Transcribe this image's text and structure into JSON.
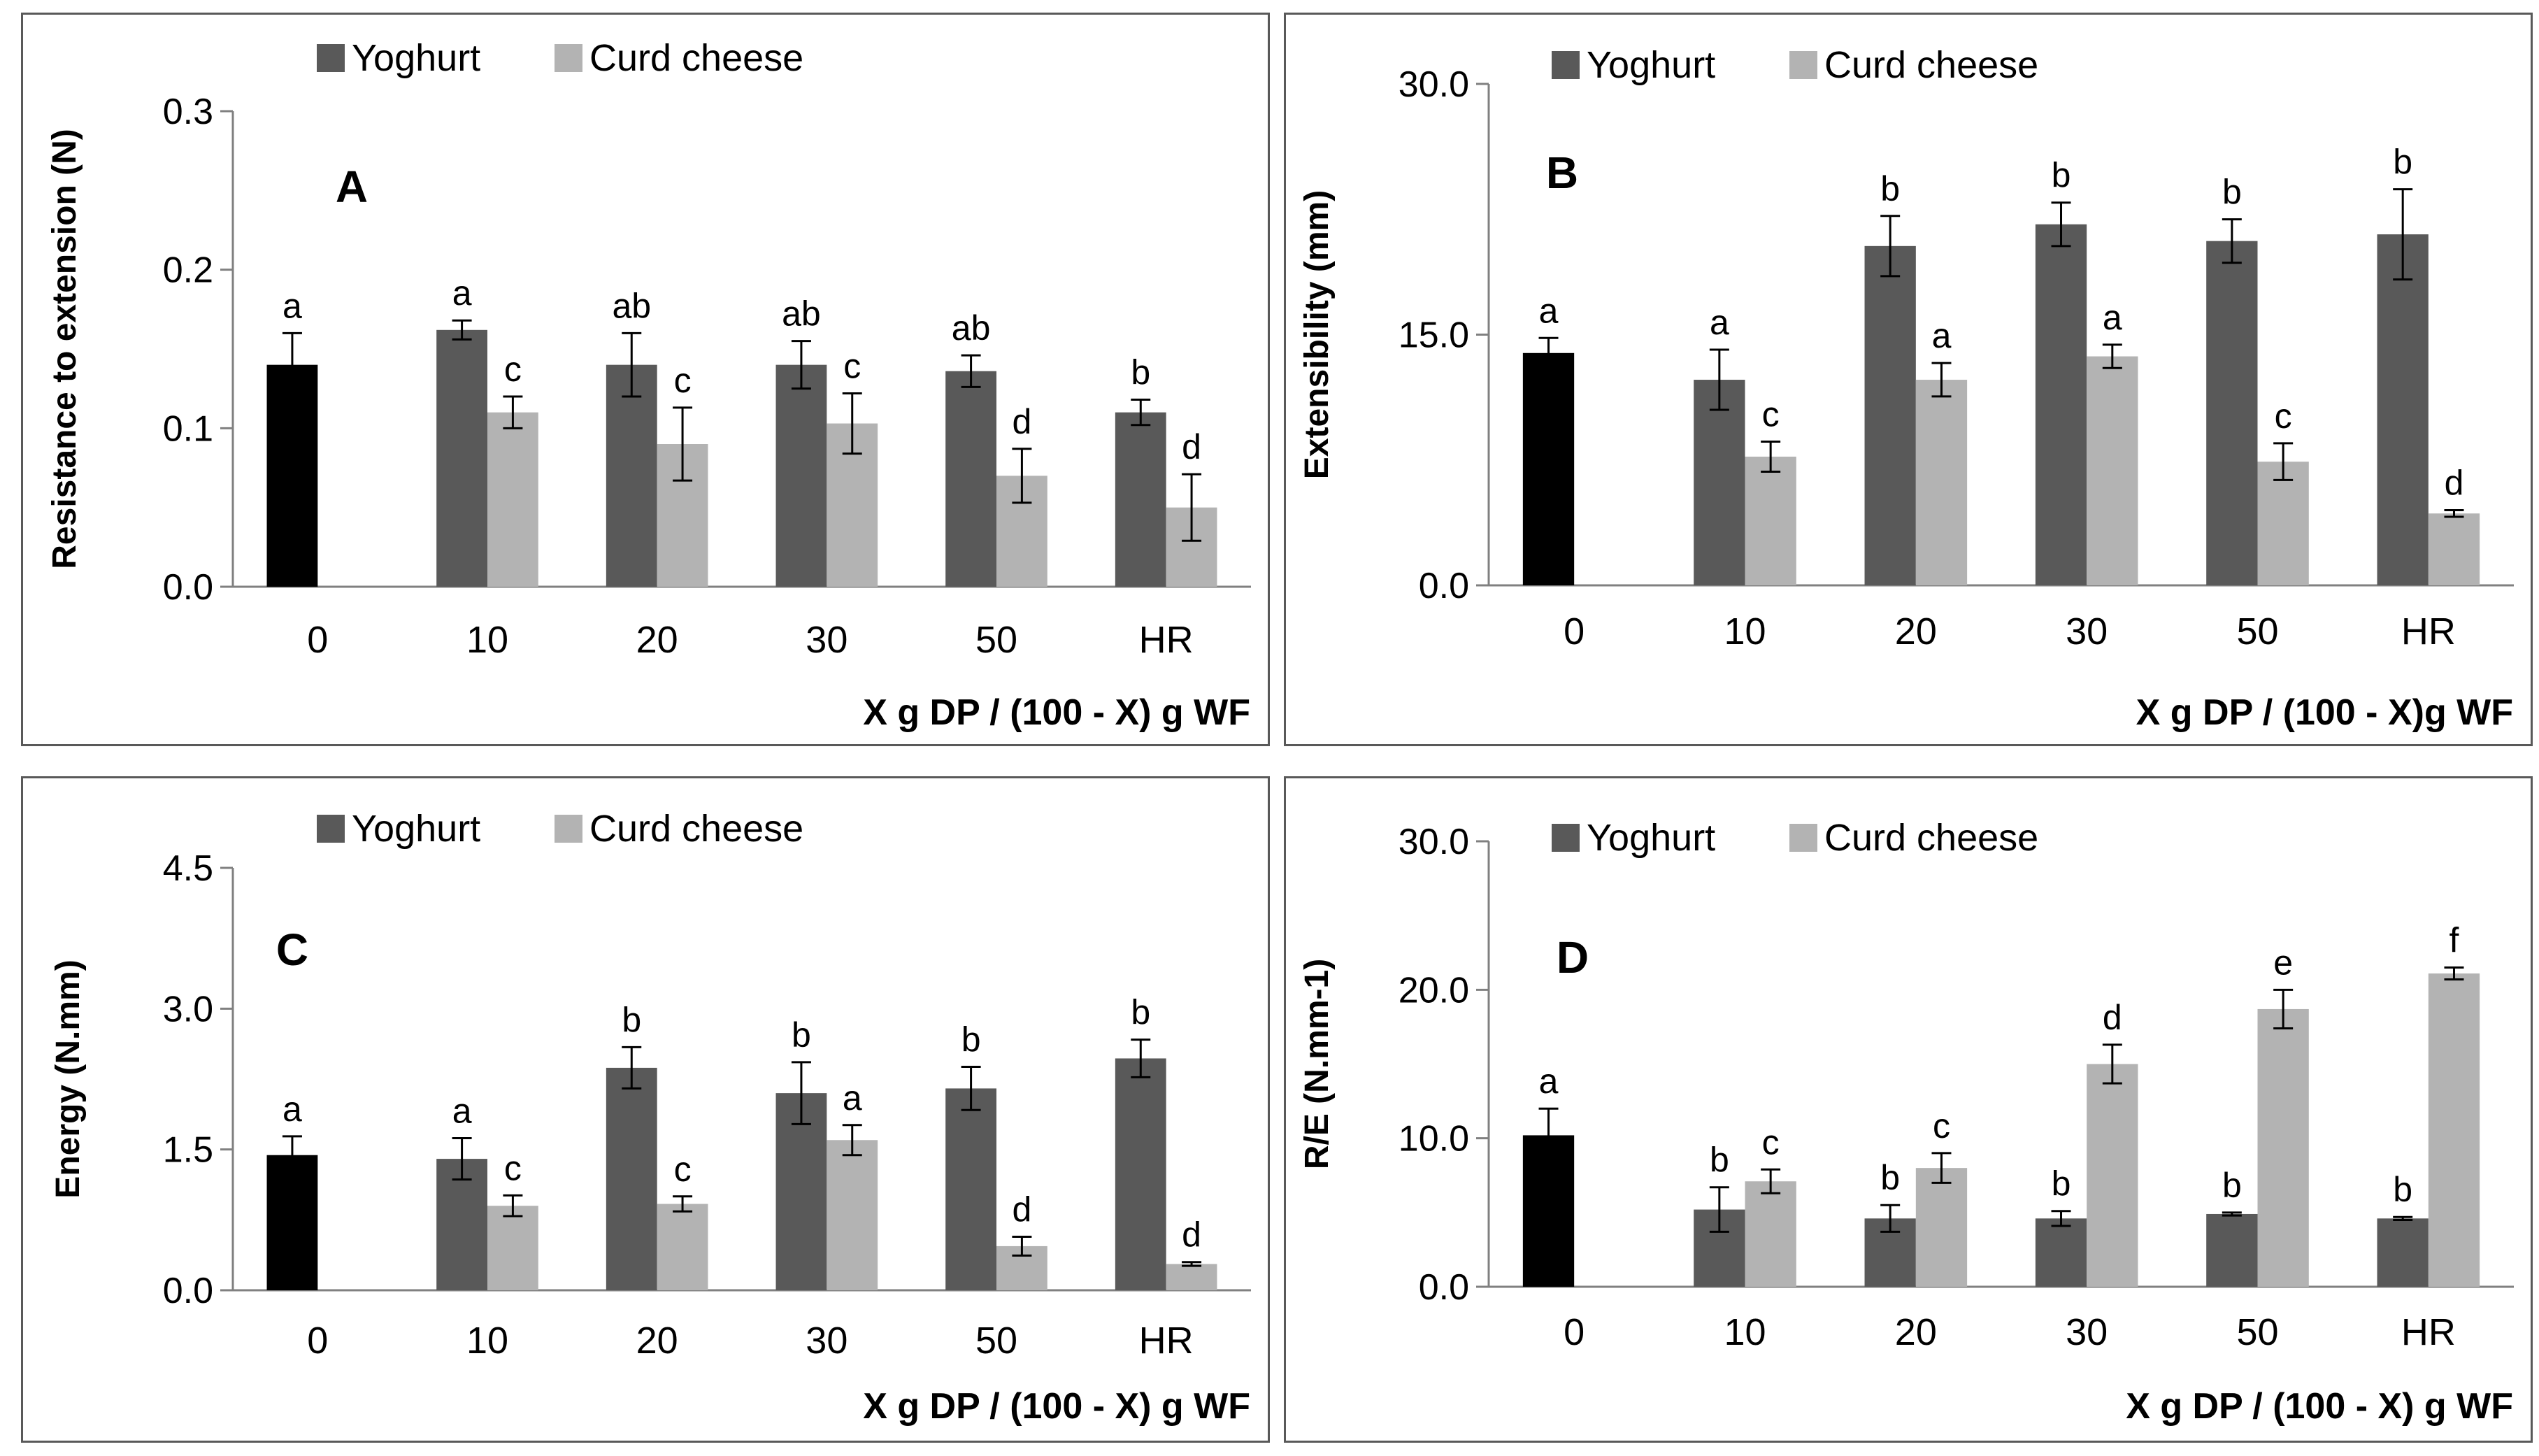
{
  "colors": {
    "control": "#000000",
    "yoghurt": "#595959",
    "curd": "#b3b3b3",
    "axis": "#808080",
    "border": "#595959"
  },
  "chart_data": [
    {
      "type": "bar",
      "panel_label": "A",
      "ylabel": "Resistance to extension (N)",
      "xlabel": "X g DP / (100 - X) g WF",
      "yticks": [
        "0.0",
        "0.1",
        "0.2",
        "0.3"
      ],
      "ylim": [
        0,
        0.3
      ],
      "categories": [
        "0",
        "10",
        "20",
        "30",
        "50",
        "HR"
      ],
      "control": {
        "value": 0.14,
        "error": 0.02,
        "letter": "a"
      },
      "series": [
        {
          "name": "Yoghurt",
          "values": [
            null,
            0.162,
            0.14,
            0.14,
            0.136,
            0.11
          ],
          "errors": [
            null,
            0.006,
            0.02,
            0.015,
            0.01,
            0.008
          ],
          "letters": [
            "",
            "a",
            "ab",
            "ab",
            "ab",
            "b"
          ]
        },
        {
          "name": "Curd cheese",
          "values": [
            null,
            0.11,
            0.09,
            0.103,
            0.07,
            0.05
          ],
          "errors": [
            null,
            0.01,
            0.023,
            0.019,
            0.017,
            0.021
          ],
          "letters": [
            "",
            "c",
            "c",
            "c",
            "d",
            "d"
          ]
        }
      ]
    },
    {
      "type": "bar",
      "panel_label": "B",
      "ylabel": "Extensibility (mm)",
      "xlabel": "X g DP / (100 - X)g WF",
      "yticks": [
        "0.0",
        "15.0",
        "30.0"
      ],
      "ylim": [
        0,
        30
      ],
      "categories": [
        "0",
        "10",
        "20",
        "30",
        "50",
        "HR"
      ],
      "control": {
        "value": 13.9,
        "error": 0.9,
        "letter": "a"
      },
      "series": [
        {
          "name": "Yoghurt",
          "values": [
            null,
            12.3,
            20.3,
            21.6,
            20.6,
            21.0
          ],
          "errors": [
            null,
            1.8,
            1.8,
            1.3,
            1.3,
            2.7
          ],
          "letters": [
            "",
            "a",
            "b",
            "b",
            "b",
            "b"
          ]
        },
        {
          "name": "Curd cheese",
          "values": [
            null,
            7.7,
            12.3,
            13.7,
            7.4,
            4.3
          ],
          "errors": [
            null,
            0.9,
            1.0,
            0.7,
            1.1,
            0.2
          ],
          "letters": [
            "",
            "c",
            "a",
            "a",
            "c",
            "d"
          ]
        }
      ]
    },
    {
      "type": "bar",
      "panel_label": "C",
      "ylabel": "Energy (N.mm)",
      "xlabel": "X g DP / (100 - X) g WF",
      "yticks": [
        "0.0",
        "1.5",
        "3.0",
        "4.5"
      ],
      "ylim": [
        0,
        4.5
      ],
      "categories": [
        "0",
        "10",
        "20",
        "30",
        "50",
        "HR"
      ],
      "control": {
        "value": 1.44,
        "error": 0.2,
        "letter": "a"
      },
      "series": [
        {
          "name": "Yoghurt",
          "values": [
            null,
            1.4,
            2.37,
            2.1,
            2.15,
            2.47
          ],
          "errors": [
            null,
            0.22,
            0.22,
            0.33,
            0.23,
            0.2
          ],
          "letters": [
            "",
            "a",
            "b",
            "b",
            "b",
            "b"
          ]
        },
        {
          "name": "Curd cheese",
          "values": [
            null,
            0.9,
            0.92,
            1.6,
            0.47,
            0.28
          ],
          "errors": [
            null,
            0.11,
            0.08,
            0.16,
            0.1,
            0.02
          ],
          "letters": [
            "",
            "c",
            "c",
            "a",
            "d",
            "d"
          ]
        }
      ]
    },
    {
      "type": "bar",
      "panel_label": "D",
      "ylabel": "R/E (N.mm-1)",
      "xlabel": "X g DP / (100 - X) g WF",
      "yticks": [
        "0.0",
        "10.0",
        "20.0",
        "30.0"
      ],
      "ylim": [
        0,
        30
      ],
      "categories": [
        "0",
        "10",
        "20",
        "30",
        "50",
        "HR"
      ],
      "control": {
        "value": 10.2,
        "error": 1.8,
        "letter": "a"
      },
      "series": [
        {
          "name": "Yoghurt",
          "values": [
            null,
            5.2,
            4.6,
            4.6,
            4.9,
            4.6
          ],
          "errors": [
            null,
            1.5,
            0.9,
            0.5,
            0.1,
            0.1
          ],
          "letters": [
            "",
            "b",
            "b",
            "b",
            "b",
            "b"
          ]
        },
        {
          "name": "Curd cheese",
          "values": [
            null,
            7.1,
            8.0,
            15.0,
            18.7,
            21.1
          ],
          "errors": [
            null,
            0.8,
            1.0,
            1.3,
            1.3,
            0.4
          ],
          "letters": [
            "",
            "c",
            "c",
            "d",
            "e",
            "f"
          ]
        }
      ]
    }
  ]
}
